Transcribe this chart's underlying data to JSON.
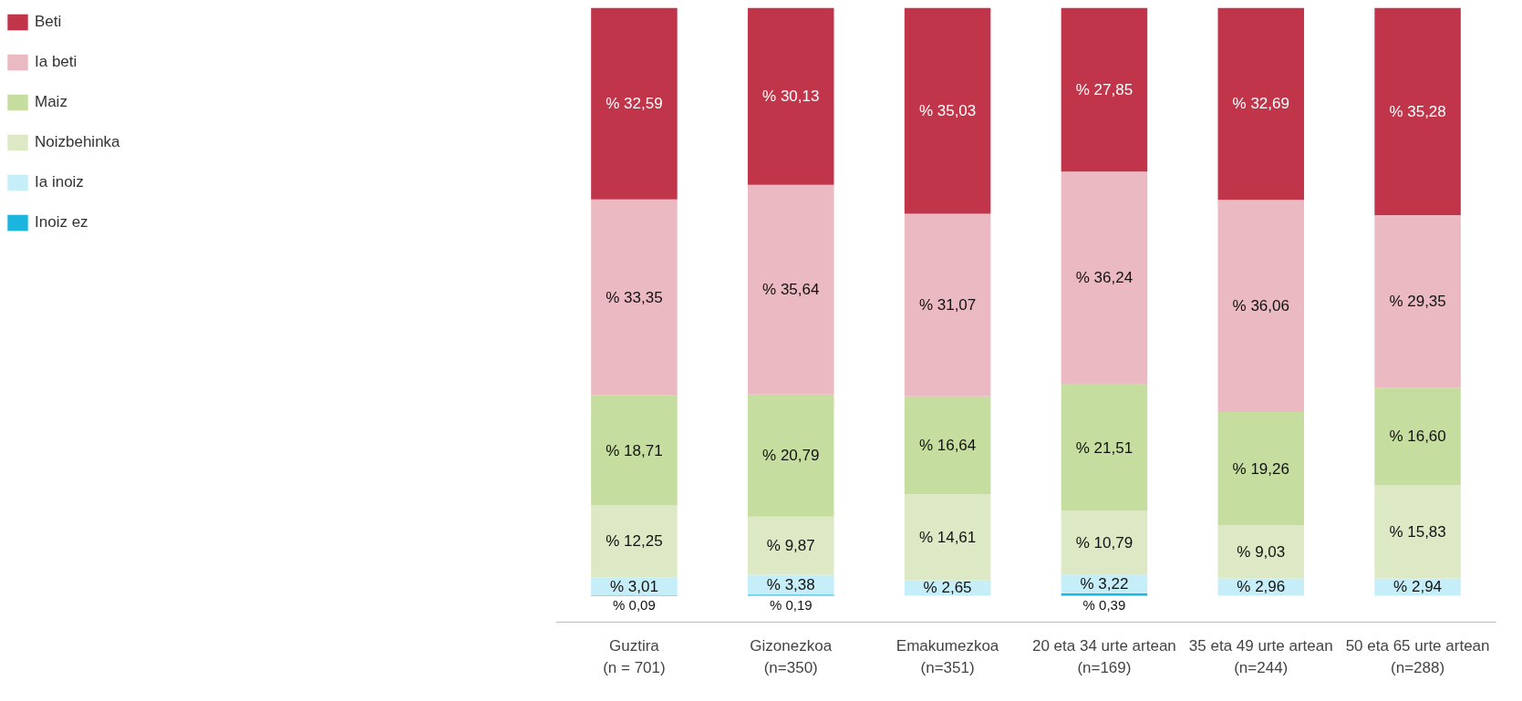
{
  "chart_data": {
    "type": "bar",
    "stacked": true,
    "legend": "left",
    "tick_labels": "x",
    "grid": false,
    "categories": [
      "Guztira\n(n = 701)",
      "Gizonezkoa\n(n=350)",
      "Emakumezkoa\n(n=351)",
      "20 eta 34 urte artean\n(n=169)",
      "35 eta 49 urte artean\n(n=244)",
      "50 eta 65 urte artean\n(n=288)"
    ],
    "series": [
      {
        "name": "Inoiz ez",
        "color": "#1cb5e0",
        "values": [
          0.09,
          0.19,
          null,
          0.39,
          null,
          null
        ],
        "value_labels": [
          "% 0,09",
          "% 0,19",
          null,
          "% 0,39",
          null,
          null
        ]
      },
      {
        "name": "Ia inoiz",
        "color": "#c6eef8",
        "values": [
          3.01,
          3.38,
          2.65,
          3.22,
          2.96,
          2.94
        ],
        "value_labels": [
          "% 3,01",
          "% 3,38",
          "% 2,65",
          "% 3,22",
          "% 2,96",
          "% 2,94"
        ]
      },
      {
        "name": "Noizbehinka",
        "color": "#dde9c4",
        "values": [
          12.25,
          9.87,
          14.61,
          10.79,
          9.03,
          15.83
        ],
        "value_labels": [
          "% 12,25",
          "% 9,87",
          "% 14,61",
          "% 10,79",
          "% 9,03",
          "% 15,83"
        ]
      },
      {
        "name": "Maiz",
        "color": "#c5dd9e",
        "values": [
          18.71,
          20.79,
          16.64,
          21.51,
          19.26,
          16.6
        ],
        "value_labels": [
          "% 18,71",
          "% 20,79",
          "% 16,64",
          "% 21,51",
          "% 19,26",
          "% 16,60"
        ]
      },
      {
        "name": "Ia beti",
        "color": "#ebb9c1",
        "values": [
          33.35,
          35.64,
          31.07,
          36.24,
          36.06,
          29.35
        ],
        "value_labels": [
          "% 33,35",
          "% 35,64",
          "% 31,07",
          "% 36,24",
          "% 36,06",
          "% 29,35"
        ]
      },
      {
        "name": "Beti",
        "color": "#c0354a",
        "values": [
          32.59,
          30.13,
          35.03,
          27.85,
          32.69,
          35.28
        ],
        "value_labels": [
          "% 32,59",
          "% 30,13",
          "% 35,03",
          "% 27,85",
          "% 32,69",
          "% 35,28"
        ]
      }
    ]
  }
}
